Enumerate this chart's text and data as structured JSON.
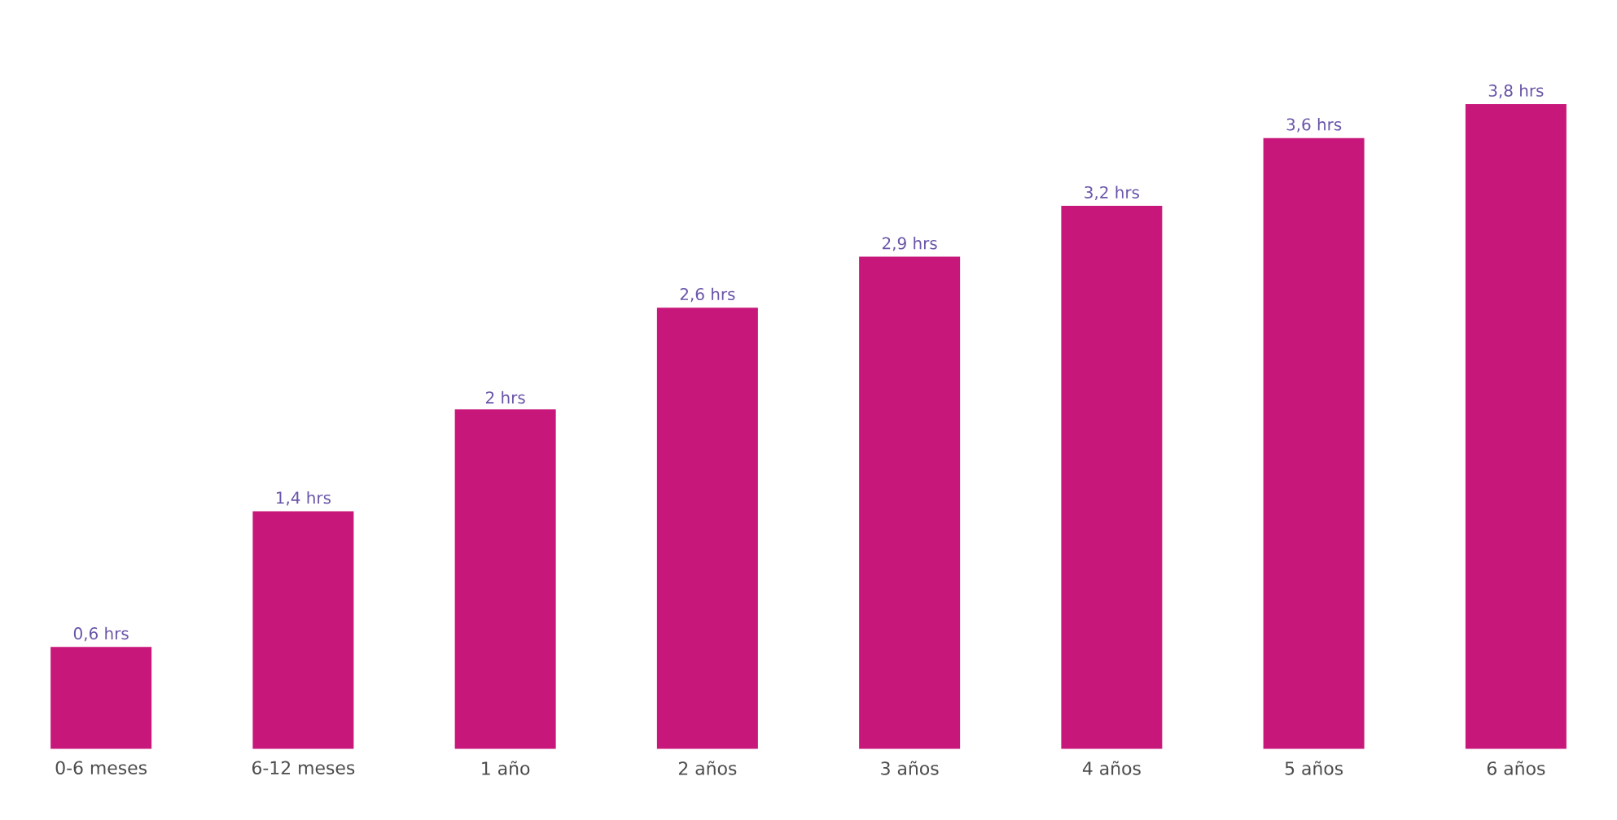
{
  "chart_data": {
    "type": "bar",
    "categories": [
      "0-6 meses",
      "6-12 meses",
      "1 año",
      "2 años",
      "3 años",
      "4 años",
      "5 años",
      "6 años"
    ],
    "values": [
      0.6,
      1.4,
      2,
      2.6,
      2.9,
      3.2,
      3.6,
      3.8
    ],
    "value_labels": [
      "0,6 hrs",
      "1,4 hrs",
      "2 hrs",
      "2,6 hrs",
      "2,9 hrs",
      "3,2 hrs",
      "3,6 hrs",
      "3,8 hrs"
    ],
    "color": "#c8177a"
  }
}
